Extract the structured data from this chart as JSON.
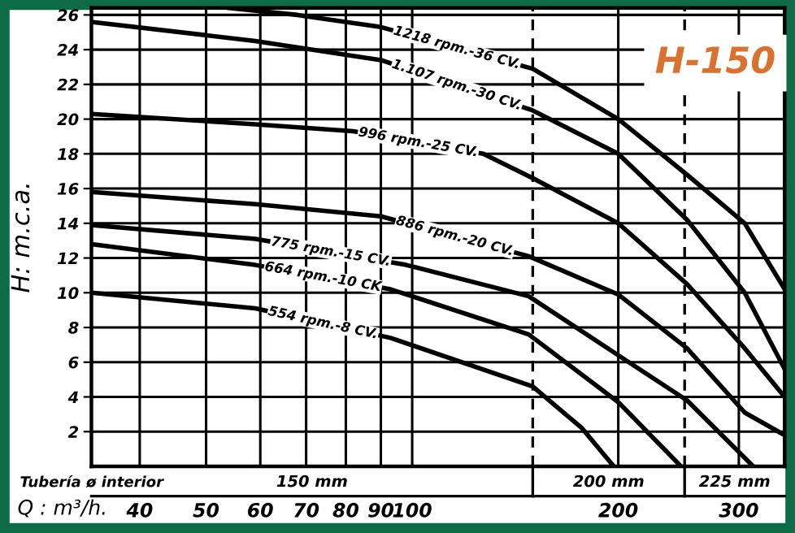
{
  "chart_data": {
    "type": "line",
    "title": "H-150",
    "xlabel": "Q : m³/h.",
    "ylabel": "H: m.c.a.",
    "log": "x",
    "xlim": [
      34,
      350
    ],
    "ylim": [
      0,
      26.4
    ],
    "xticks": [
      40,
      50,
      60,
      70,
      80,
      90,
      100,
      200,
      300
    ],
    "yticks": [
      2,
      4,
      6,
      8,
      10,
      12,
      14,
      16,
      18,
      20,
      22,
      24,
      26
    ],
    "grid": true,
    "marker": "none",
    "line_style": "solid",
    "ref_lines": [
      {
        "axis": "x",
        "value": 150,
        "line_style": "dashed",
        "color": "#000000"
      },
      {
        "axis": "x",
        "value": 250,
        "line_style": "dashed",
        "color": "#000000"
      }
    ],
    "annotations": [
      "Tubería ø interior",
      "150 mm",
      "200 mm",
      "225 mm"
    ],
    "series": [
      {
        "name": "1218 rpm.-36 CV.",
        "color": "#000000",
        "x": [
          54,
          68,
          90,
          150,
          200,
          252,
          306,
          350
        ],
        "values": [
          26.4,
          26.0,
          25.3,
          22.9,
          20.0,
          16.8,
          14.0,
          10.2
        ]
      },
      {
        "name": "1.107 rpm.-30 CV.",
        "color": "#000000",
        "x": [
          34,
          59,
          90,
          150,
          200,
          252,
          306,
          350
        ],
        "values": [
          25.6,
          24.5,
          23.4,
          20.5,
          18.0,
          14.2,
          10.0,
          5.6
        ]
      },
      {
        "name": "996 rpm.-25 CV.",
        "color": "#000000",
        "x": [
          34,
          59,
          82,
          127,
          150,
          200,
          252,
          306,
          350
        ],
        "values": [
          20.3,
          19.7,
          19.3,
          18.0,
          16.6,
          14.0,
          10.5,
          6.8,
          4.0
        ]
      },
      {
        "name": "886 rpm.-20 CV.",
        "color": "#000000",
        "x": [
          34,
          59,
          90,
          148,
          200,
          252,
          306,
          350
        ],
        "values": [
          15.8,
          15.1,
          14.4,
          12.1,
          9.9,
          6.8,
          3.1,
          1.8
        ]
      },
      {
        "name": "775 rpm.-15 CV.",
        "color": "#000000",
        "x": [
          34,
          59,
          98,
          148,
          200,
          252,
          315
        ],
        "values": [
          13.9,
          13.1,
          11.6,
          9.8,
          6.4,
          3.8,
          0
        ]
      },
      {
        "name": "664 rpm.-10 CK",
        "color": "#000000",
        "x": [
          34,
          59,
          93,
          148,
          200,
          247
        ],
        "values": [
          12.8,
          11.6,
          10.2,
          7.6,
          3.7,
          0
        ]
      },
      {
        "name": "554 rpm.-8 CV.",
        "color": "#000000",
        "x": [
          34,
          59,
          93,
          150,
          177,
          197
        ],
        "values": [
          10.0,
          9.1,
          7.4,
          4.6,
          2.2,
          0
        ]
      }
    ]
  }
}
